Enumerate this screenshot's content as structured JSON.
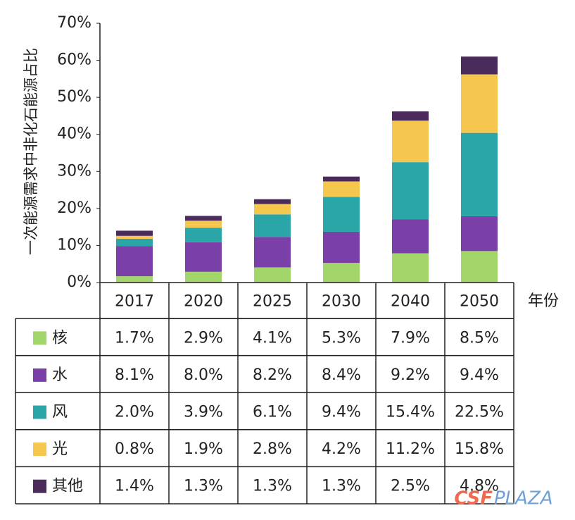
{
  "chart_data": {
    "type": "stacked_bar_table",
    "ylabel": "一次能源需求中非化石能源占比",
    "xlabel": "年份",
    "categories": [
      "2017",
      "2020",
      "2025",
      "2030",
      "2040",
      "2050"
    ],
    "ylim": [
      0,
      70
    ],
    "yticks": [
      {
        "value": 0,
        "label": "0%"
      },
      {
        "value": 10,
        "label": "10%"
      },
      {
        "value": 20,
        "label": "20%"
      },
      {
        "value": 30,
        "label": "30%"
      },
      {
        "value": 40,
        "label": "40%"
      },
      {
        "value": 50,
        "label": "50%"
      },
      {
        "value": 60,
        "label": "60%"
      },
      {
        "value": 70,
        "label": "70%"
      }
    ],
    "series": [
      {
        "name": "核",
        "color": "#a3d66a",
        "values": [
          1.7,
          2.9,
          4.1,
          5.3,
          7.9,
          8.5
        ],
        "value_labels": [
          "1.7%",
          "2.9%",
          "4.1%",
          "5.3%",
          "7.9%",
          "8.5%"
        ]
      },
      {
        "name": "水",
        "color": "#7b3fa8",
        "values": [
          8.1,
          8.0,
          8.2,
          8.4,
          9.2,
          9.4
        ],
        "value_labels": [
          "8.1%",
          "8.0%",
          "8.2%",
          "8.4%",
          "9.2%",
          "9.4%"
        ]
      },
      {
        "name": "风",
        "color": "#2ba6a8",
        "values": [
          2.0,
          3.9,
          6.1,
          9.4,
          15.4,
          22.5
        ],
        "value_labels": [
          "2.0%",
          "3.9%",
          "6.1%",
          "9.4%",
          "15.4%",
          "22.5%"
        ]
      },
      {
        "name": "光",
        "color": "#f6c74e",
        "values": [
          0.8,
          1.9,
          2.8,
          4.2,
          11.2,
          15.8
        ],
        "value_labels": [
          "0.8%",
          "1.9%",
          "2.8%",
          "4.2%",
          "11.2%",
          "15.8%"
        ]
      },
      {
        "name": "其他",
        "color": "#4b2b5c",
        "values": [
          1.4,
          1.3,
          1.3,
          1.3,
          2.5,
          4.8
        ],
        "value_labels": [
          "1.4%",
          "1.3%",
          "1.3%",
          "1.3%",
          "2.5%",
          "4.8%"
        ]
      }
    ]
  },
  "watermark": {
    "brand": "CSF",
    "suffix": "PLAZA"
  }
}
